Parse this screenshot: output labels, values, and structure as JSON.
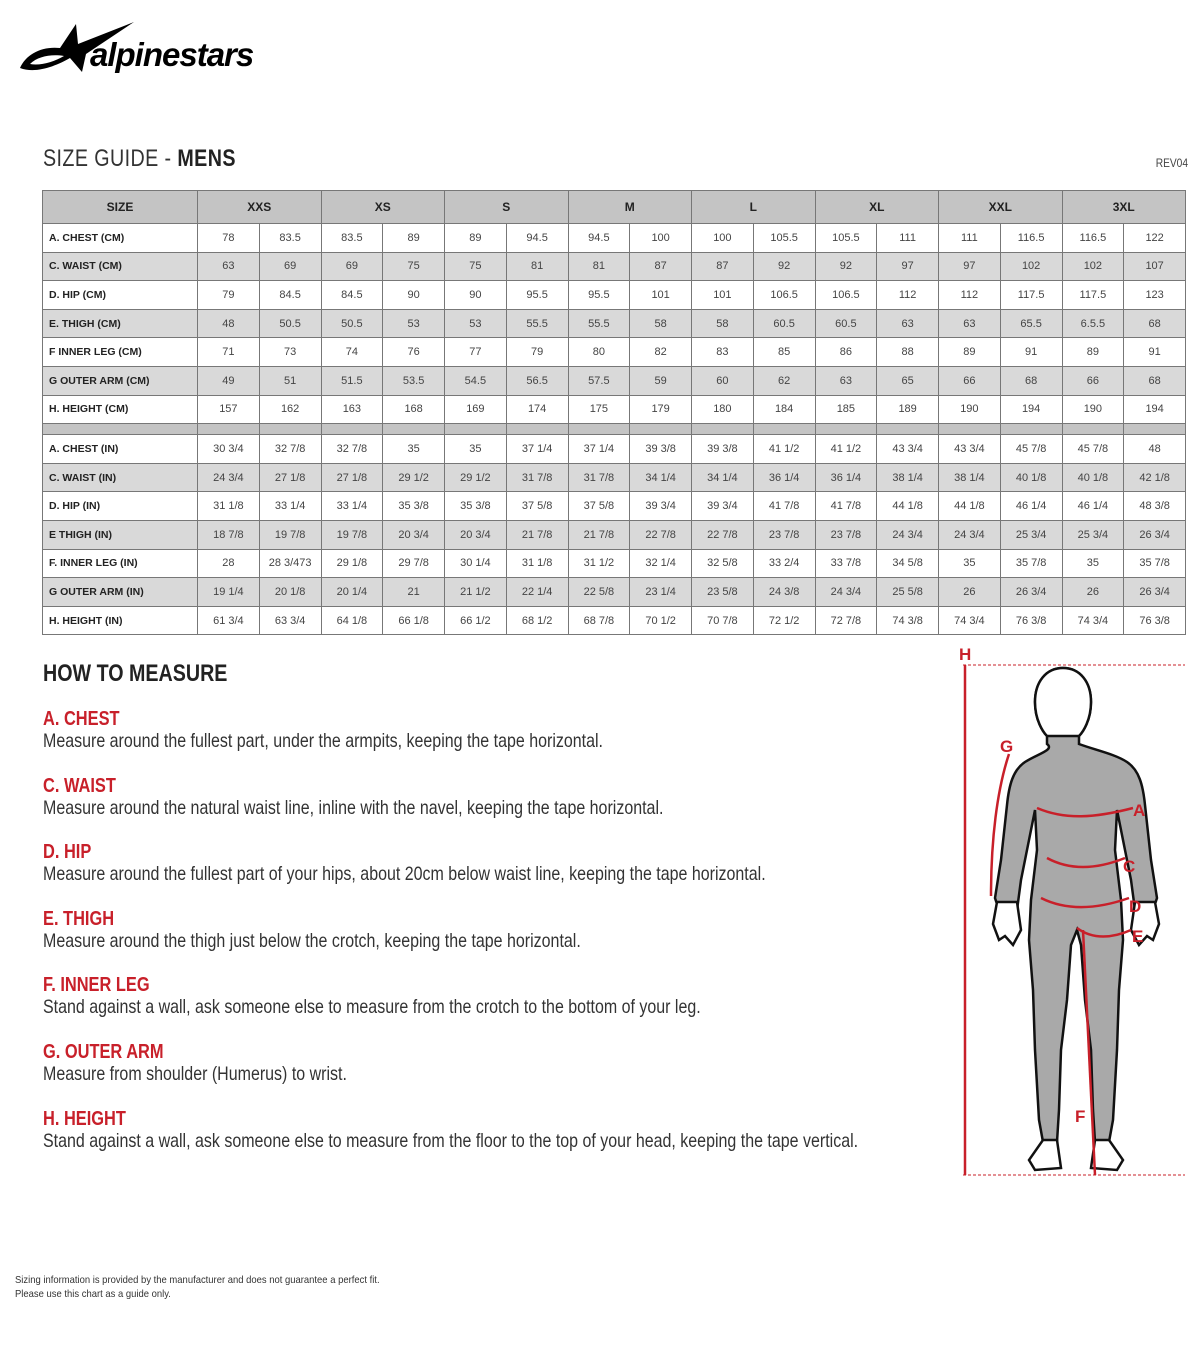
{
  "brand": {
    "logo_text": "alpinestars"
  },
  "header": {
    "title_light": "SIZE GUIDE - ",
    "title_bold": "MENS",
    "revision": "REV04"
  },
  "table": {
    "size_header": "SIZE",
    "sizes": [
      "XXS",
      "XS",
      "S",
      "M",
      "L",
      "XL",
      "XXL",
      "3XL"
    ],
    "cm_rows": [
      {
        "label": "A. CHEST (CM)",
        "values": [
          "78",
          "83.5",
          "83.5",
          "89",
          "89",
          "94.5",
          "94.5",
          "100",
          "100",
          "105.5",
          "105.5",
          "111",
          "111",
          "116.5",
          "116.5",
          "122"
        ]
      },
      {
        "label": "C. WAIST (CM)",
        "values": [
          "63",
          "69",
          "69",
          "75",
          "75",
          "81",
          "81",
          "87",
          "87",
          "92",
          "92",
          "97",
          "97",
          "102",
          "102",
          "107"
        ]
      },
      {
        "label": "D. HIP (CM)",
        "values": [
          "79",
          "84.5",
          "84.5",
          "90",
          "90",
          "95.5",
          "95.5",
          "101",
          "101",
          "106.5",
          "106.5",
          "112",
          "112",
          "117.5",
          "117.5",
          "123"
        ]
      },
      {
        "label": "E. THIGH (CM)",
        "values": [
          "48",
          "50.5",
          "50.5",
          "53",
          "53",
          "55.5",
          "55.5",
          "58",
          "58",
          "60.5",
          "60.5",
          "63",
          "63",
          "65.5",
          "6.5.5",
          "68"
        ]
      },
      {
        "label": "F INNER LEG (CM)",
        "values": [
          "71",
          "73",
          "74",
          "76",
          "77",
          "79",
          "80",
          "82",
          "83",
          "85",
          "86",
          "88",
          "89",
          "91",
          "89",
          "91"
        ]
      },
      {
        "label": "G OUTER ARM (CM)",
        "values": [
          "49",
          "51",
          "51.5",
          "53.5",
          "54.5",
          "56.5",
          "57.5",
          "59",
          "60",
          "62",
          "63",
          "65",
          "66",
          "68",
          "66",
          "68"
        ]
      },
      {
        "label": "H. HEIGHT (CM)",
        "values": [
          "157",
          "162",
          "163",
          "168",
          "169",
          "174",
          "175",
          "179",
          "180",
          "184",
          "185",
          "189",
          "190",
          "194",
          "190",
          "194"
        ]
      }
    ],
    "in_rows": [
      {
        "label": "A. CHEST (IN)",
        "values": [
          "30 3/4",
          "32 7/8",
          "32 7/8",
          "35",
          "35",
          "37 1/4",
          "37 1/4",
          "39 3/8",
          "39 3/8",
          "41 1/2",
          "41 1/2",
          "43 3/4",
          "43 3/4",
          "45 7/8",
          "45 7/8",
          "48"
        ]
      },
      {
        "label": "C. WAIST (IN)",
        "values": [
          "24 3/4",
          "27 1/8",
          "27 1/8",
          "29 1/2",
          "29 1/2",
          "31 7/8",
          "31 7/8",
          "34 1/4",
          "34 1/4",
          "36 1/4",
          "36 1/4",
          "38 1/4",
          "38 1/4",
          "40 1/8",
          "40 1/8",
          "42 1/8"
        ]
      },
      {
        "label": "D. HIP (IN)",
        "values": [
          "31 1/8",
          "33 1/4",
          "33 1/4",
          "35 3/8",
          "35 3/8",
          "37 5/8",
          "37 5/8",
          "39 3/4",
          "39 3/4",
          "41 7/8",
          "41 7/8",
          "44 1/8",
          "44 1/8",
          "46 1/4",
          "46 1/4",
          "48 3/8"
        ]
      },
      {
        "label": "E THIGH (IN)",
        "values": [
          "18 7/8",
          "19 7/8",
          "19 7/8",
          "20 3/4",
          "20 3/4",
          "21 7/8",
          "21 7/8",
          "22 7/8",
          "22 7/8",
          "23 7/8",
          "23 7/8",
          "24 3/4",
          "24 3/4",
          "25 3/4",
          "25 3/4",
          "26 3/4"
        ]
      },
      {
        "label": "F. INNER LEG (IN)",
        "values": [
          "28",
          "28 3/473",
          "29 1/8",
          "29 7/8",
          "30 1/4",
          "31 1/8",
          "31 1/2",
          "32 1/4",
          "32 5/8",
          "33 2/4",
          "33 7/8",
          "34 5/8",
          "35",
          "35 7/8",
          "35",
          "35 7/8"
        ]
      },
      {
        "label": "G OUTER ARM (IN)",
        "values": [
          "19 1/4",
          "20 1/8",
          "20 1/4",
          "21",
          "21 1/2",
          "22 1/4",
          "22 5/8",
          "23 1/4",
          "23 5/8",
          "24 3/8",
          "24 3/4",
          "25 5/8",
          "26",
          "26 3/4",
          "26",
          "26 3/4"
        ]
      },
      {
        "label": "H. HEIGHT (IN)",
        "values": [
          "61 3/4",
          "63 3/4",
          "64 1/8",
          "66 1/8",
          "66 1/2",
          "68 1/2",
          "68 7/8",
          "70 1/2",
          "70 7/8",
          "72 1/2",
          "72 7/8",
          "74 3/8",
          "74 3/4",
          "76 3/8",
          "74 3/4",
          "76 3/8"
        ]
      }
    ]
  },
  "how_to_measure": {
    "title": "HOW TO MEASURE",
    "items": [
      {
        "heading": "A. CHEST",
        "text": "Measure around the fullest part, under the armpits, keeping the tape horizontal."
      },
      {
        "heading": "C. WAIST",
        "text": "Measure around the natural waist line, inline with the navel, keeping the tape horizontal."
      },
      {
        "heading": "D. HIP",
        "text": "Measure around the fullest part of your hips, about 20cm below waist line, keeping the tape horizontal."
      },
      {
        "heading": "E. THIGH",
        "text": "Measure around the thigh just below the crotch, keeping the tape horizontal."
      },
      {
        "heading": "F. INNER LEG",
        "text": "Stand against a wall, ask someone else to measure from the crotch to the bottom of your leg."
      },
      {
        "heading": "G. OUTER ARM",
        "text": "Measure from shoulder (Humerus) to wrist."
      },
      {
        "heading": "H. HEIGHT",
        "text": "Stand against a wall, ask someone else to measure from the floor to the top of your head, keeping the tape vertical."
      }
    ]
  },
  "figure": {
    "labels": {
      "H": "H",
      "G": "G",
      "A": "A",
      "C": "C",
      "D": "D",
      "E": "E",
      "F": "F"
    },
    "accent": "#c8202a"
  },
  "footer": {
    "line1": "Sizing information is provided by the manufacturer and does not guarantee a perfect fit.",
    "line2": "Please use this chart as a guide only."
  }
}
